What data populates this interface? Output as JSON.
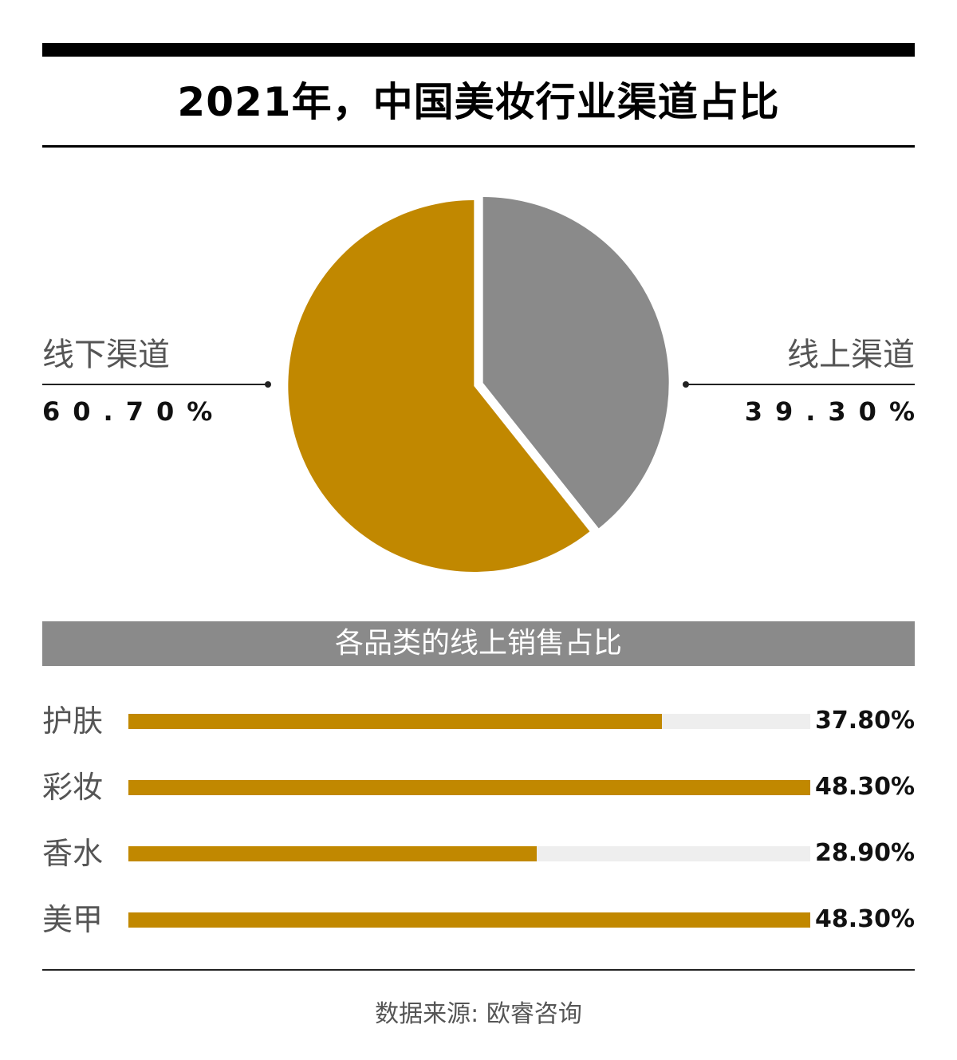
{
  "chart_data": [
    {
      "type": "pie",
      "title": "2021年，中国美妆行业渠道占比",
      "slices": [
        {
          "label": "线上渠道",
          "value": 39.3,
          "display": "39.30%",
          "color": "#8a8a8a"
        },
        {
          "label": "线下渠道",
          "value": 60.7,
          "display": "60.70%",
          "color": "#c18800"
        }
      ]
    },
    {
      "type": "bar",
      "title": "各品类的线上销售占比",
      "orientation": "horizontal",
      "scale_max": 48.3,
      "bar_color": "#c18800",
      "track_color": "#eeeeee",
      "categories": [
        "护肤",
        "彩妆",
        "香水",
        "美甲"
      ],
      "values": [
        37.8,
        48.3,
        28.9,
        48.3
      ],
      "labels": [
        "37.80%",
        "48.30%",
        "28.90%",
        "48.30%"
      ]
    }
  ],
  "footer": {
    "source": "数据来源: 欧睿咨询"
  }
}
